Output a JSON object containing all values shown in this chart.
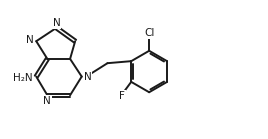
{
  "bg_color": "#ffffff",
  "line_color": "#1a1a1a",
  "bond_width": 1.4,
  "font_size": 7.5,
  "figsize": [
    2.68,
    1.39
  ],
  "dpi": 100,
  "xlim": [
    0,
    10.5
  ],
  "ylim": [
    0,
    5.2
  ]
}
